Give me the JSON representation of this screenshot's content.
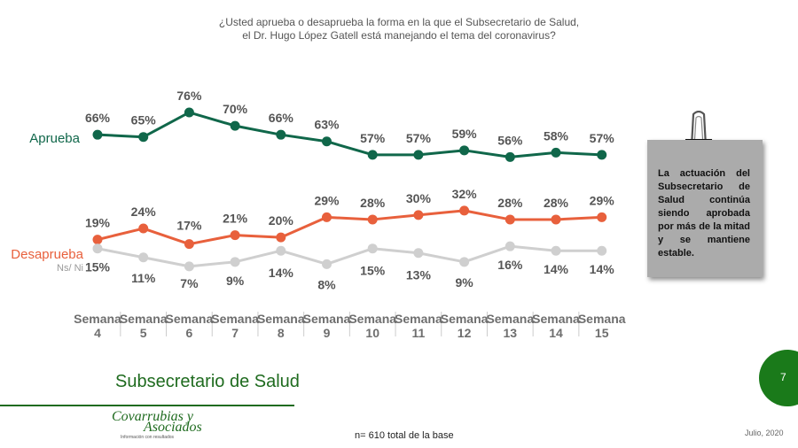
{
  "question": {
    "line1": "¿Usted aprueba o desaprueba la forma en la que el Subsecretario de Salud,",
    "line2": "el Dr. Hugo López Gatell está manejando el tema del coronavirus?"
  },
  "colors": {
    "approve": "#10674a",
    "disapprove": "#e8603c",
    "ns": "#cfcfcf",
    "value_label": "#555555",
    "axis_label": "#6e6e6e",
    "brand_green": "#1a7a1a"
  },
  "chart_data": {
    "type": "line",
    "categories": [
      [
        "Semana",
        "4"
      ],
      [
        "Semana",
        "5"
      ],
      [
        "Semana",
        "6"
      ],
      [
        "Semana",
        "7"
      ],
      [
        "Semana",
        "8"
      ],
      [
        "Semana",
        "9"
      ],
      [
        "Semana",
        "10"
      ],
      [
        "Semana",
        "11"
      ],
      [
        "Semana",
        "12"
      ],
      [
        "Semana",
        "13"
      ],
      [
        "Semana",
        "14"
      ],
      [
        "Semana",
        "15"
      ]
    ],
    "value_suffix": "%",
    "series": [
      {
        "name": "Aprueba",
        "color": "#10674a",
        "values": [
          66,
          65,
          76,
          70,
          66,
          63,
          57,
          57,
          59,
          56,
          58,
          57
        ]
      },
      {
        "name": "Desaprueba",
        "color": "#e8603c",
        "values": [
          19,
          24,
          17,
          21,
          20,
          29,
          28,
          30,
          32,
          28,
          28,
          29
        ]
      },
      {
        "name": "Ns/ Ni",
        "color": "#cfcfcf",
        "values": [
          15,
          11,
          7,
          9,
          14,
          8,
          15,
          13,
          9,
          16,
          14,
          14
        ]
      }
    ],
    "legend_placement": "left, beside each line",
    "grid": "vertical separators between weeks"
  },
  "note": {
    "text": "La actuación del Subsecretario de Salud continúa siendo aprobada por más de la mitad y se mantiene estable.",
    "icon": "binder-clip-icon"
  },
  "footer": {
    "section_title": "Subsecretario de Salud",
    "page_number": "7",
    "base_note": "n= 610 total de la base",
    "date": "Julio, 2020",
    "logo_line1": "Covarrubias y",
    "logo_line2": "Asociados",
    "logo_tagline": "Información con resultados"
  }
}
